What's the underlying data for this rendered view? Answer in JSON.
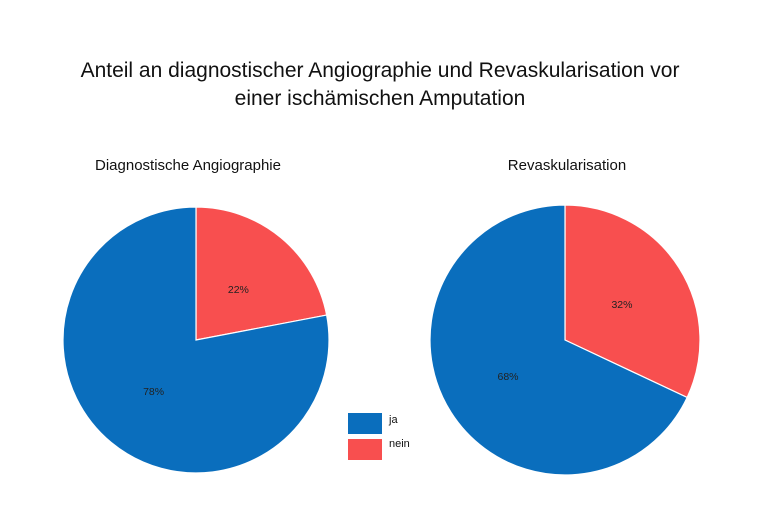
{
  "title_line1": "Anteil an diagnostischer Angiographie und Revaskularisation vor",
  "title_line2": "einer ischämischen Amputation",
  "colors": {
    "ja": "#0a6ebd",
    "nein": "#f84f4f"
  },
  "legend": [
    {
      "label": "ja",
      "color": "#0a6ebd"
    },
    {
      "label": "nein",
      "color": "#f84f4f"
    }
  ],
  "chart_data": [
    {
      "type": "pie",
      "title": "Diagnostische Angiographie",
      "slices": [
        {
          "name": "nein",
          "value": 22,
          "label": "22%"
        },
        {
          "name": "ja",
          "value": 78,
          "label": "78%"
        }
      ]
    },
    {
      "type": "pie",
      "title": "Revaskularisation",
      "slices": [
        {
          "name": "nein",
          "value": 32,
          "label": "32%"
        },
        {
          "name": "ja",
          "value": 68,
          "label": "68%"
        }
      ]
    }
  ]
}
